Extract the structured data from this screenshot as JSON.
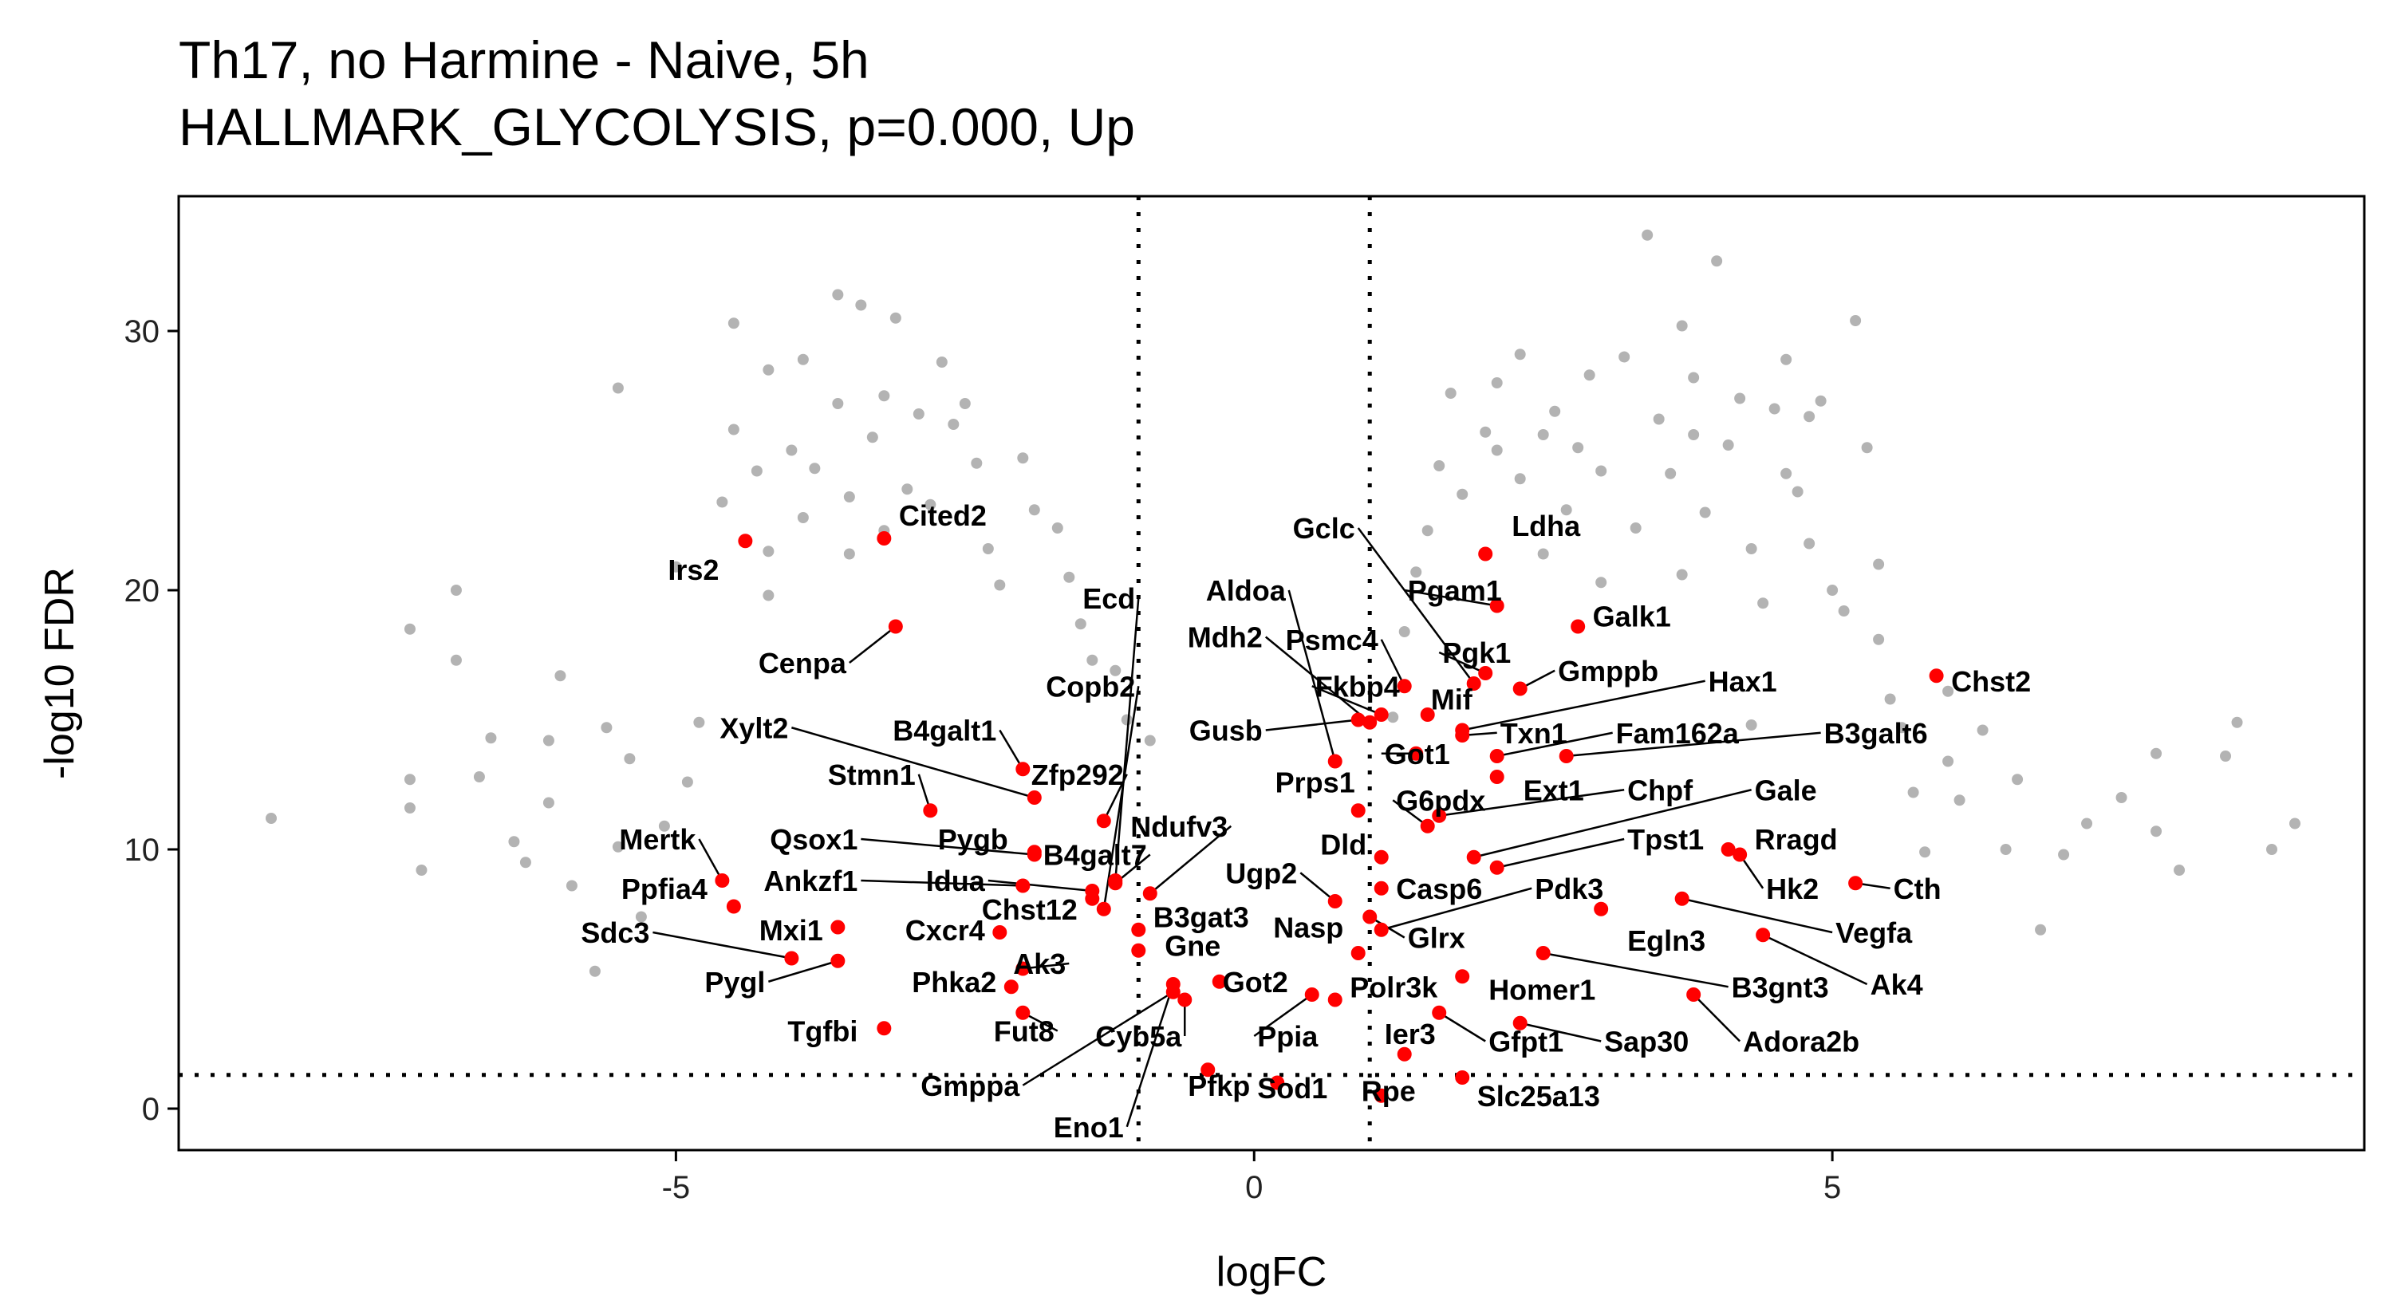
{
  "chart_data": {
    "type": "scatter",
    "title": "Th17, no Harmine - Naive, 5h",
    "subtitle": "HALLMARK_GLYCOLYSIS, p=0.000, Up",
    "xlabel": "logFC",
    "ylabel": "-log10 FDR",
    "xlim": [
      -9.3,
      9.6
    ],
    "ylim": [
      -1.6,
      35.2
    ],
    "x_ticks": [
      -5,
      0,
      5
    ],
    "y_ticks": [
      0,
      10,
      20,
      30
    ],
    "grid": false,
    "reference_lines": {
      "vertical": [
        -1,
        1
      ],
      "horizontal": [
        1.3
      ]
    },
    "colors": {
      "background": "#b3b3b3",
      "highlight": "#ff0000",
      "reference_line": "#000000"
    },
    "background_points": [
      [
        -8.5,
        11.2
      ],
      [
        -7.3,
        18.5
      ],
      [
        -7.3,
        12.7
      ],
      [
        -7.3,
        11.6
      ],
      [
        -7.2,
        9.2
      ],
      [
        -6.9,
        20
      ],
      [
        -6.9,
        17.3
      ],
      [
        -6.7,
        12.8
      ],
      [
        -6.6,
        14.3
      ],
      [
        -6.4,
        10.3
      ],
      [
        -6.1,
        14.2
      ],
      [
        -6.1,
        11.8
      ],
      [
        -6.3,
        9.5
      ],
      [
        -6.0,
        16.7
      ],
      [
        -5.9,
        8.6
      ],
      [
        -5.7,
        5.3
      ],
      [
        -5.6,
        14.7
      ],
      [
        -5.4,
        13.5
      ],
      [
        -5.5,
        10.1
      ],
      [
        -5.3,
        7.4
      ],
      [
        -5.1,
        10.9
      ],
      [
        -5.0,
        20.9
      ],
      [
        -4.9,
        12.6
      ],
      [
        -4.8,
        14.9
      ],
      [
        -4.6,
        23.4
      ],
      [
        -4.5,
        26.2
      ],
      [
        -4.5,
        30.3
      ],
      [
        -4.3,
        24.6
      ],
      [
        -4.2,
        19.8
      ],
      [
        -4.0,
        25.4
      ],
      [
        -4.2,
        21.5
      ],
      [
        -3.9,
        22.8
      ],
      [
        -3.8,
        24.7
      ],
      [
        -3.6,
        27.2
      ],
      [
        -3.5,
        23.6
      ],
      [
        -3.4,
        31.0
      ],
      [
        -3.5,
        21.4
      ],
      [
        -3.3,
        25.9
      ],
      [
        -3.2,
        27.5
      ],
      [
        -3.1,
        30.5
      ],
      [
        -3.0,
        23.9
      ],
      [
        -2.9,
        26.8
      ],
      [
        -2.7,
        28.8
      ],
      [
        -2.6,
        26.4
      ],
      [
        -2.5,
        27.2
      ],
      [
        -2.4,
        24.9
      ],
      [
        -2.3,
        21.6
      ],
      [
        -2.0,
        25.1
      ],
      [
        -1.9,
        23.1
      ],
      [
        -1.7,
        22.4
      ],
      [
        -1.6,
        20.5
      ],
      [
        -1.5,
        18.7
      ],
      [
        -1.4,
        17.3
      ],
      [
        -1.2,
        16.9
      ],
      [
        -1.1,
        15.0
      ],
      [
        -0.9,
        14.2
      ],
      [
        -3.6,
        31.4
      ],
      [
        -4.2,
        28.5
      ],
      [
        -5.5,
        27.8
      ],
      [
        -3.9,
        28.9
      ],
      [
        -3.2,
        22.3
      ],
      [
        -2.8,
        23.3
      ],
      [
        -2.2,
        20.2
      ],
      [
        1.2,
        15.1
      ],
      [
        1.3,
        18.4
      ],
      [
        1.4,
        20.7
      ],
      [
        1.5,
        22.3
      ],
      [
        1.6,
        24.8
      ],
      [
        1.7,
        27.6
      ],
      [
        1.8,
        23.7
      ],
      [
        2.0,
        26.1
      ],
      [
        2.1,
        25.4
      ],
      [
        2.3,
        29.1
      ],
      [
        2.3,
        24.3
      ],
      [
        2.5,
        21.4
      ],
      [
        2.6,
        26.9
      ],
      [
        2.7,
        23.1
      ],
      [
        2.8,
        25.5
      ],
      [
        3.0,
        24.6
      ],
      [
        3.0,
        20.3
      ],
      [
        3.2,
        29.0
      ],
      [
        3.3,
        22.4
      ],
      [
        3.5,
        26.6
      ],
      [
        3.4,
        33.7
      ],
      [
        3.6,
        24.5
      ],
      [
        3.8,
        26.0
      ],
      [
        3.7,
        20.6
      ],
      [
        3.9,
        23.0
      ],
      [
        4.1,
        25.6
      ],
      [
        4.2,
        27.4
      ],
      [
        4.3,
        21.6
      ],
      [
        4.4,
        19.5
      ],
      [
        4.5,
        27.0
      ],
      [
        4.6,
        24.5
      ],
      [
        4.7,
        23.8
      ],
      [
        4.8,
        26.7
      ],
      [
        4.9,
        27.3
      ],
      [
        4.8,
        21.8
      ],
      [
        5.0,
        20.0
      ],
      [
        5.1,
        19.2
      ],
      [
        5.2,
        30.4
      ],
      [
        5.3,
        25.5
      ],
      [
        5.4,
        18.1
      ],
      [
        5.5,
        15.8
      ],
      [
        5.6,
        14.7
      ],
      [
        5.7,
        12.2
      ],
      [
        5.8,
        9.9
      ],
      [
        6.0,
        13.4
      ],
      [
        6.1,
        11.9
      ],
      [
        6.3,
        14.6
      ],
      [
        6.5,
        10.0
      ],
      [
        6.6,
        12.7
      ],
      [
        6.8,
        6.9
      ],
      [
        7.0,
        9.8
      ],
      [
        7.2,
        11.0
      ],
      [
        7.5,
        12.0
      ],
      [
        7.8,
        10.7
      ],
      [
        8.0,
        9.2
      ],
      [
        7.8,
        13.7
      ],
      [
        8.4,
        13.6
      ],
      [
        8.5,
        14.9
      ],
      [
        8.8,
        10.0
      ],
      [
        9.0,
        11.0
      ],
      [
        6.0,
        16.1
      ],
      [
        5.4,
        21.0
      ],
      [
        4.6,
        28.9
      ],
      [
        3.8,
        28.2
      ],
      [
        2.9,
        28.3
      ],
      [
        2.1,
        28.0
      ],
      [
        4.0,
        32.7
      ],
      [
        3.7,
        30.2
      ],
      [
        2.5,
        26.0
      ],
      [
        4.3,
        14.8
      ]
    ],
    "highlighted_points": [
      {
        "x": -4.4,
        "y": 21.9,
        "label": "Irs2",
        "lx": -4.6,
        "ly": 20.8,
        "anchor": "end"
      },
      {
        "x": -3.2,
        "y": 22.0,
        "label": "Cited2",
        "lx": -3.1,
        "ly": 22.9,
        "anchor": "start"
      },
      {
        "x": -3.1,
        "y": 18.6,
        "label": "Cenpa",
        "lx": -3.5,
        "ly": 17.2,
        "anchor": "end"
      },
      {
        "x": -1.2,
        "y": 8.8,
        "label": "Ecd",
        "lx": -1.0,
        "ly": 19.7,
        "anchor": "end"
      },
      {
        "x": 0.7,
        "y": 13.4,
        "label": "Aldoa",
        "lx": 0.3,
        "ly": 20.0,
        "anchor": "end"
      },
      {
        "x": 1.9,
        "y": 16.4,
        "label": "Gclc",
        "lx": 0.9,
        "ly": 22.4,
        "anchor": "end"
      },
      {
        "x": 2.0,
        "y": 21.4,
        "label": "Ldha",
        "lx": 2.2,
        "ly": 22.5,
        "anchor": "start"
      },
      {
        "x": 2.1,
        "y": 19.4,
        "label": "Pgam1",
        "lx": 1.3,
        "ly": 20.0,
        "anchor": "start"
      },
      {
        "x": 2.8,
        "y": 18.6,
        "label": "Galk1",
        "lx": 2.9,
        "ly": 19.0,
        "anchor": "start"
      },
      {
        "x": 1.3,
        "y": 16.3,
        "label": "Psmc4",
        "lx": 1.1,
        "ly": 18.1,
        "anchor": "end"
      },
      {
        "x": 1.0,
        "y": 14.9,
        "label": "Mdh2",
        "lx": 0.1,
        "ly": 18.2,
        "anchor": "end"
      },
      {
        "x": 2.0,
        "y": 16.8,
        "label": "Pgk1",
        "lx": 1.6,
        "ly": 17.6,
        "anchor": "start"
      },
      {
        "x": 2.3,
        "y": 16.2,
        "label": "Gmppb",
        "lx": 2.6,
        "ly": 16.9,
        "anchor": "start"
      },
      {
        "x": -1.3,
        "y": 7.7,
        "label": "Copb2",
        "lx": -1.0,
        "ly": 16.3,
        "anchor": "end"
      },
      {
        "x": 1.1,
        "y": 15.2,
        "label": "Fkbp4",
        "lx": 0.5,
        "ly": 16.3,
        "anchor": "start"
      },
      {
        "x": 1.5,
        "y": 15.2,
        "label": "Mif",
        "lx": 1.5,
        "ly": 15.8,
        "anchor": "start"
      },
      {
        "x": 1.8,
        "y": 14.6,
        "label": "Hax1",
        "lx": 3.9,
        "ly": 16.5,
        "anchor": "start"
      },
      {
        "x": 5.9,
        "y": 16.7,
        "label": "Chst2",
        "lx": 6.0,
        "ly": 16.5,
        "anchor": "start"
      },
      {
        "x": -1.9,
        "y": 12.0,
        "label": "Xylt2",
        "lx": -4.0,
        "ly": 14.7,
        "anchor": "end"
      },
      {
        "x": -2.0,
        "y": 13.1,
        "label": "B4galt1",
        "lx": -2.2,
        "ly": 14.6,
        "anchor": "end"
      },
      {
        "x": 0.9,
        "y": 15.0,
        "label": "Gusb",
        "lx": 0.1,
        "ly": 14.6,
        "anchor": "end"
      },
      {
        "x": 1.8,
        "y": 14.4,
        "label": "Txn1",
        "lx": 2.1,
        "ly": 14.5,
        "anchor": "start"
      },
      {
        "x": 2.1,
        "y": 13.6,
        "label": "Fam162a",
        "lx": 3.1,
        "ly": 14.5,
        "anchor": "start"
      },
      {
        "x": 2.7,
        "y": 13.6,
        "label": "B3galt6",
        "lx": 4.9,
        "ly": 14.5,
        "anchor": "start"
      },
      {
        "x": 1.4,
        "y": 13.7,
        "label": "Got1",
        "lx": 1.1,
        "ly": 13.7,
        "anchor": "start"
      },
      {
        "x": -1.3,
        "y": 11.1,
        "label": "Zfp292",
        "lx": -1.1,
        "ly": 12.9,
        "anchor": "end"
      },
      {
        "x": -2.8,
        "y": 11.5,
        "label": "Stmn1",
        "lx": -2.9,
        "ly": 12.9,
        "anchor": "end"
      },
      {
        "x": 0.9,
        "y": 11.5,
        "label": "Prps1",
        "lx": 0.9,
        "ly": 12.6,
        "anchor": "end"
      },
      {
        "x": 1.5,
        "y": 10.9,
        "label": "G6pdx",
        "lx": 1.2,
        "ly": 11.9,
        "anchor": "start"
      },
      {
        "x": 2.1,
        "y": 12.8,
        "label": "Ext1",
        "lx": 2.3,
        "ly": 12.3,
        "anchor": "start"
      },
      {
        "x": 1.6,
        "y": 11.3,
        "label": "Chpf",
        "lx": 3.2,
        "ly": 12.3,
        "anchor": "start"
      },
      {
        "x": 1.9,
        "y": 9.7,
        "label": "Gale",
        "lx": 4.3,
        "ly": 12.3,
        "anchor": "start"
      },
      {
        "x": -4.6,
        "y": 8.8,
        "label": "Mertk",
        "lx": -4.8,
        "ly": 10.4,
        "anchor": "end"
      },
      {
        "x": -1.9,
        "y": 9.8,
        "label": "Qsox1",
        "lx": -3.4,
        "ly": 10.4,
        "anchor": "end"
      },
      {
        "x": -1.9,
        "y": 9.9,
        "label": "Pygb",
        "lx": -2.1,
        "ly": 10.4,
        "anchor": "end"
      },
      {
        "x": -1.2,
        "y": 8.7,
        "label": "B4galt7",
        "lx": -0.9,
        "ly": 9.8,
        "anchor": "end"
      },
      {
        "x": -0.9,
        "y": 8.3,
        "label": "Ndufv3",
        "lx": -0.2,
        "ly": 10.9,
        "anchor": "end"
      },
      {
        "x": 1.1,
        "y": 9.7,
        "label": "Dld",
        "lx": 1.0,
        "ly": 10.2,
        "anchor": "end"
      },
      {
        "x": 2.1,
        "y": 9.3,
        "label": "Tpst1",
        "lx": 3.2,
        "ly": 10.4,
        "anchor": "start"
      },
      {
        "x": 4.1,
        "y": 10.0,
        "label": "Rragd",
        "lx": 4.3,
        "ly": 10.4,
        "anchor": "start"
      },
      {
        "x": -4.5,
        "y": 7.8,
        "label": "Ppfia4",
        "lx": -4.7,
        "ly": 8.5,
        "anchor": "end"
      },
      {
        "x": -2.0,
        "y": 8.6,
        "label": "Ankzf1",
        "lx": -3.4,
        "ly": 8.8,
        "anchor": "end"
      },
      {
        "x": -1.4,
        "y": 8.4,
        "label": "Idua",
        "lx": -2.3,
        "ly": 8.8,
        "anchor": "end"
      },
      {
        "x": 0.7,
        "y": 8.0,
        "label": "Ugp2",
        "lx": 0.4,
        "ly": 9.1,
        "anchor": "end"
      },
      {
        "x": 1.1,
        "y": 8.5,
        "label": "Casp6",
        "lx": 1.2,
        "ly": 8.5,
        "anchor": "start"
      },
      {
        "x": 1.1,
        "y": 6.9,
        "label": "Pdk3",
        "lx": 2.4,
        "ly": 8.5,
        "anchor": "start"
      },
      {
        "x": 4.2,
        "y": 9.8,
        "label": "Hk2",
        "lx": 4.4,
        "ly": 8.5,
        "anchor": "start"
      },
      {
        "x": 5.2,
        "y": 8.7,
        "label": "Cth",
        "lx": 5.5,
        "ly": 8.5,
        "anchor": "start"
      },
      {
        "x": -1.4,
        "y": 8.1,
        "label": "Chst12",
        "lx": -1.5,
        "ly": 7.7,
        "anchor": "end"
      },
      {
        "x": -1.0,
        "y": 6.9,
        "label": "B3gat3",
        "lx": -0.9,
        "ly": 7.4,
        "anchor": "start"
      },
      {
        "x": 3.7,
        "y": 8.1,
        "label": "Vegfa",
        "lx": 5.0,
        "ly": 6.8,
        "anchor": "start"
      },
      {
        "x": -4.0,
        "y": 5.8,
        "label": "Sdc3",
        "lx": -5.2,
        "ly": 6.8,
        "anchor": "end"
      },
      {
        "x": -3.6,
        "y": 7.0,
        "label": "Mxi1",
        "lx": -3.7,
        "ly": 6.9,
        "anchor": "end"
      },
      {
        "x": -2.2,
        "y": 6.8,
        "label": "Cxcr4",
        "lx": -2.3,
        "ly": 6.9,
        "anchor": "end"
      },
      {
        "x": 0.9,
        "y": 6.0,
        "label": "Nasp",
        "lx": 0.8,
        "ly": 7.0,
        "anchor": "end"
      },
      {
        "x": 1.0,
        "y": 7.4,
        "label": "Glrx",
        "lx": 1.3,
        "ly": 6.6,
        "anchor": "start"
      },
      {
        "x": 3.0,
        "y": 7.7,
        "label": "Egln3",
        "lx": 3.2,
        "ly": 6.5,
        "anchor": "start"
      },
      {
        "x": 4.4,
        "y": 6.7,
        "label": "Ak4",
        "lx": 5.3,
        "ly": 4.8,
        "anchor": "start"
      },
      {
        "x": -1.0,
        "y": 6.1,
        "label": "Gne",
        "lx": -0.8,
        "ly": 6.3,
        "anchor": "start"
      },
      {
        "x": -3.6,
        "y": 5.7,
        "label": "Pygl",
        "lx": -4.2,
        "ly": 4.9,
        "anchor": "end"
      },
      {
        "x": -2.1,
        "y": 4.7,
        "label": "Phka2",
        "lx": -2.2,
        "ly": 4.9,
        "anchor": "end"
      },
      {
        "x": -2.0,
        "y": 5.4,
        "label": "Ak3",
        "lx": -1.6,
        "ly": 5.6,
        "anchor": "end"
      },
      {
        "x": 1.8,
        "y": 5.1,
        "label": "Homer1",
        "lx": 2.0,
        "ly": 4.6,
        "anchor": "start"
      },
      {
        "x": 2.3,
        "y": 3.3,
        "label": "Sap30",
        "lx": 3.0,
        "ly": 2.6,
        "anchor": "start"
      },
      {
        "x": 2.5,
        "y": 6.0,
        "label": "B3gnt3",
        "lx": 4.1,
        "ly": 4.7,
        "anchor": "start"
      },
      {
        "x": 3.8,
        "y": 4.4,
        "label": "Adora2b",
        "lx": 4.2,
        "ly": 2.6,
        "anchor": "start"
      },
      {
        "x": -0.3,
        "y": 4.9,
        "label": "Got2",
        "lx": -0.3,
        "ly": 4.9,
        "anchor": "start"
      },
      {
        "x": 0.7,
        "y": 4.2,
        "label": "Polr3k",
        "lx": 0.8,
        "ly": 4.7,
        "anchor": "start"
      },
      {
        "x": -3.2,
        "y": 3.1,
        "label": "Tgfbi",
        "lx": -3.4,
        "ly": 3.0,
        "anchor": "end"
      },
      {
        "x": -2.0,
        "y": 3.7,
        "label": "Fut8",
        "lx": -1.7,
        "ly": 3.0,
        "anchor": "end"
      },
      {
        "x": -0.6,
        "y": 4.2,
        "label": "Cyb5a",
        "lx": -0.6,
        "ly": 2.8,
        "anchor": "end"
      },
      {
        "x": 0.5,
        "y": 4.4,
        "label": "Ppia",
        "lx": 0.0,
        "ly": 2.8,
        "anchor": "start"
      },
      {
        "x": 1.3,
        "y": 2.1,
        "label": "Ier3",
        "lx": 1.1,
        "ly": 2.9,
        "anchor": "start"
      },
      {
        "x": 1.6,
        "y": 3.7,
        "label": "Gfpt1",
        "lx": 2.0,
        "ly": 2.6,
        "anchor": "start"
      },
      {
        "x": -0.7,
        "y": 4.5,
        "label": "Gmppa",
        "lx": -2.0,
        "ly": 0.9,
        "anchor": "end"
      },
      {
        "x": -0.4,
        "y": 1.5,
        "label": "Pfkp",
        "lx": -0.6,
        "ly": 0.9,
        "anchor": "start"
      },
      {
        "x": 0.2,
        "y": 1.0,
        "label": "Sod1",
        "lx": 0.0,
        "ly": 0.8,
        "anchor": "start"
      },
      {
        "x": 1.1,
        "y": 0.5,
        "label": "Rpe",
        "lx": 0.9,
        "ly": 0.7,
        "anchor": "start"
      },
      {
        "x": 1.8,
        "y": 1.2,
        "label": "Slc25a13",
        "lx": 1.9,
        "ly": 0.5,
        "anchor": "start"
      },
      {
        "x": -0.7,
        "y": 4.8,
        "label": "Eno1",
        "lx": -1.1,
        "ly": -0.7,
        "anchor": "end"
      }
    ]
  }
}
